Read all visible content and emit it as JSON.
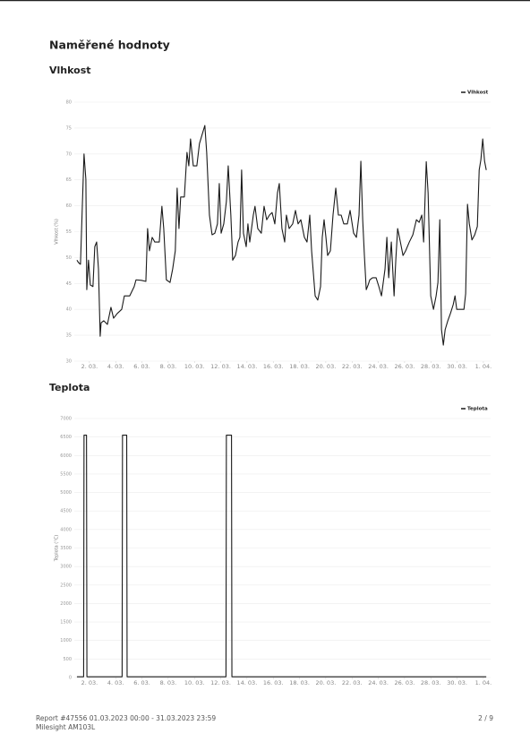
{
  "header": {
    "title": "Naměřené hodnoty"
  },
  "chart_data": [
    {
      "type": "line",
      "title": "Vlhkost",
      "y_label": "Vlhkost (%)",
      "legend": "top-right",
      "grid": true,
      "xlim": [
        0.85,
        32.55
      ],
      "ylim": [
        30,
        80
      ],
      "yticks": [
        30,
        35,
        40,
        45,
        50,
        55,
        60,
        65,
        70,
        75,
        80
      ],
      "xticks": [
        {
          "value": 2,
          "label": "2. 03."
        },
        {
          "value": 4,
          "label": "4. 03."
        },
        {
          "value": 6,
          "label": "6. 03."
        },
        {
          "value": 8,
          "label": "8. 03."
        },
        {
          "value": 10,
          "label": "10. 03."
        },
        {
          "value": 12,
          "label": "12. 03."
        },
        {
          "value": 14,
          "label": "14. 03."
        },
        {
          "value": 16,
          "label": "16. 03."
        },
        {
          "value": 18,
          "label": "18. 03."
        },
        {
          "value": 20,
          "label": "20. 03."
        },
        {
          "value": 22,
          "label": "22. 03."
        },
        {
          "value": 24,
          "label": "24. 03."
        },
        {
          "value": 26,
          "label": "26. 03."
        },
        {
          "value": 28,
          "label": "28. 03."
        },
        {
          "value": 30,
          "label": "30. 03."
        },
        {
          "value": 32,
          "label": "1. 04."
        }
      ],
      "x": [
        1.05,
        1.18,
        1.32,
        1.46,
        1.59,
        1.73,
        1.8,
        1.93,
        2.07,
        2.27,
        2.41,
        2.55,
        2.69,
        2.82,
        2.89,
        3.09,
        3.37,
        3.64,
        3.84,
        4.12,
        4.46,
        4.66,
        5.07,
        5.41,
        5.55,
        5.96,
        6.3,
        6.43,
        6.57,
        6.78,
        6.98,
        7.32,
        7.52,
        7.66,
        7.86,
        8.14,
        8.34,
        8.54,
        8.68,
        8.82,
        8.95,
        9.23,
        9.43,
        9.57,
        9.7,
        9.91,
        10.18,
        10.38,
        10.59,
        10.79,
        10.93,
        11.14,
        11.34,
        11.55,
        11.75,
        11.89,
        12.03,
        12.23,
        12.43,
        12.57,
        12.77,
        12.91,
        13.12,
        13.32,
        13.46,
        13.59,
        13.73,
        13.94,
        14.07,
        14.21,
        14.48,
        14.61,
        14.82,
        15.09,
        15.3,
        15.5,
        15.71,
        15.91,
        16.12,
        16.32,
        16.46,
        16.66,
        16.87,
        17.0,
        17.21,
        17.48,
        17.69,
        17.89,
        18.1,
        18.37,
        18.57,
        18.78,
        18.92,
        19.19,
        19.39,
        19.6,
        19.73,
        19.87,
        20.01,
        20.14,
        20.35,
        20.55,
        20.76,
        20.96,
        21.17,
        21.37,
        21.64,
        21.85,
        22.12,
        22.33,
        22.53,
        22.67,
        22.81,
        22.94,
        23.08,
        23.22,
        23.35,
        23.56,
        23.83,
        24.04,
        24.24,
        24.51,
        24.65,
        24.79,
        24.99,
        25.2,
        25.33,
        25.47,
        25.68,
        25.88,
        26.08,
        26.36,
        26.63,
        26.9,
        27.11,
        27.31,
        27.45,
        27.65,
        27.79,
        27.99,
        28.2,
        28.4,
        28.54,
        28.68,
        28.81,
        28.95,
        29.09,
        29.29,
        29.49,
        29.7,
        29.84,
        29.97,
        30.24,
        30.52,
        30.65,
        30.79,
        30.93,
        31.13,
        31.34,
        31.54,
        31.68,
        31.81,
        31.95,
        32.09,
        32.22
      ],
      "series": [
        {
          "name": "Vlhkost",
          "color": "#1a1a1a",
          "values": [
            49.5,
            49.0,
            48.7,
            59.9,
            70.0,
            65.1,
            43.8,
            49.5,
            44.7,
            44.4,
            52.1,
            53.0,
            47.8,
            34.8,
            37.4,
            37.8,
            37.1,
            40.4,
            38.3,
            39.2,
            40.0,
            42.6,
            42.6,
            44.4,
            45.7,
            45.6,
            45.4,
            55.6,
            51.3,
            53.9,
            53.0,
            53.0,
            59.9,
            55.6,
            45.7,
            45.2,
            47.8,
            51.3,
            63.4,
            55.6,
            61.7,
            61.7,
            70.3,
            67.7,
            72.9,
            67.7,
            67.7,
            72.0,
            73.8,
            75.5,
            70.3,
            58.2,
            54.4,
            54.7,
            56.5,
            64.3,
            54.7,
            56.5,
            60.8,
            67.7,
            58.2,
            49.5,
            50.4,
            53.0,
            53.9,
            66.9,
            54.7,
            52.1,
            56.5,
            53.0,
            58.2,
            59.9,
            55.6,
            54.7,
            59.9,
            57.3,
            58.2,
            58.7,
            56.5,
            62.5,
            64.3,
            55.6,
            53.0,
            58.2,
            55.6,
            56.5,
            59.1,
            56.5,
            57.3,
            53.9,
            53.0,
            58.2,
            51.3,
            42.6,
            41.8,
            44.4,
            53.9,
            57.3,
            53.9,
            50.4,
            51.3,
            58.2,
            63.4,
            58.2,
            58.2,
            56.5,
            56.5,
            59.1,
            54.7,
            53.9,
            58.2,
            68.6,
            57.3,
            50.4,
            43.8,
            44.7,
            45.7,
            46.1,
            46.1,
            44.4,
            42.6,
            47.8,
            53.9,
            46.1,
            53.0,
            42.6,
            49.5,
            55.6,
            53.0,
            50.4,
            51.3,
            53.0,
            54.4,
            57.3,
            56.8,
            58.2,
            53.0,
            68.5,
            62.5,
            42.6,
            40.0,
            42.6,
            45.2,
            57.3,
            36.1,
            33.1,
            36.1,
            37.8,
            39.2,
            40.9,
            42.6,
            40.0,
            40.0,
            40.0,
            43.0,
            60.3,
            56.5,
            53.4,
            54.4,
            56.0,
            66.9,
            68.9,
            72.9,
            68.6,
            66.9
          ]
        }
      ]
    },
    {
      "type": "line",
      "title": "Teplota",
      "y_label": "Teplota (°C)",
      "legend": "top-right",
      "grid": true,
      "xlim": [
        0.85,
        32.55
      ],
      "ylim": [
        0,
        7000
      ],
      "yticks": [
        0,
        500,
        1000,
        1500,
        2000,
        2500,
        3000,
        3500,
        4000,
        4500,
        5000,
        5500,
        6000,
        6500,
        7000
      ],
      "xticks": [
        {
          "value": 2,
          "label": "2. 03."
        },
        {
          "value": 4,
          "label": "4. 03."
        },
        {
          "value": 6,
          "label": "6. 03."
        },
        {
          "value": 8,
          "label": "8. 03."
        },
        {
          "value": 10,
          "label": "10. 03."
        },
        {
          "value": 12,
          "label": "12. 03."
        },
        {
          "value": 14,
          "label": "14. 03."
        },
        {
          "value": 16,
          "label": "16. 03."
        },
        {
          "value": 18,
          "label": "18. 03."
        },
        {
          "value": 20,
          "label": "20. 03."
        },
        {
          "value": 22,
          "label": "22. 03."
        },
        {
          "value": 24,
          "label": "24. 03."
        },
        {
          "value": 26,
          "label": "26. 03."
        },
        {
          "value": 28,
          "label": "28. 03."
        },
        {
          "value": 30,
          "label": "30. 03."
        },
        {
          "value": 32,
          "label": "1. 04."
        }
      ],
      "x": [
        1.05,
        1.56,
        1.59,
        1.78,
        1.81,
        4.49,
        4.52,
        4.84,
        4.87,
        12.4,
        12.43,
        12.82,
        12.85,
        32.22
      ],
      "series": [
        {
          "name": "Teplota",
          "color": "#1a1a1a",
          "values": [
            20,
            20,
            6550,
            6550,
            20,
            20,
            6550,
            6550,
            20,
            20,
            6550,
            6550,
            20,
            20
          ]
        }
      ]
    }
  ],
  "footer": {
    "report": "Report #47556 01.03.2023 00:00 - 31.03.2023 23:59",
    "device": "Milesight AM103L",
    "page": "2 / 9"
  }
}
